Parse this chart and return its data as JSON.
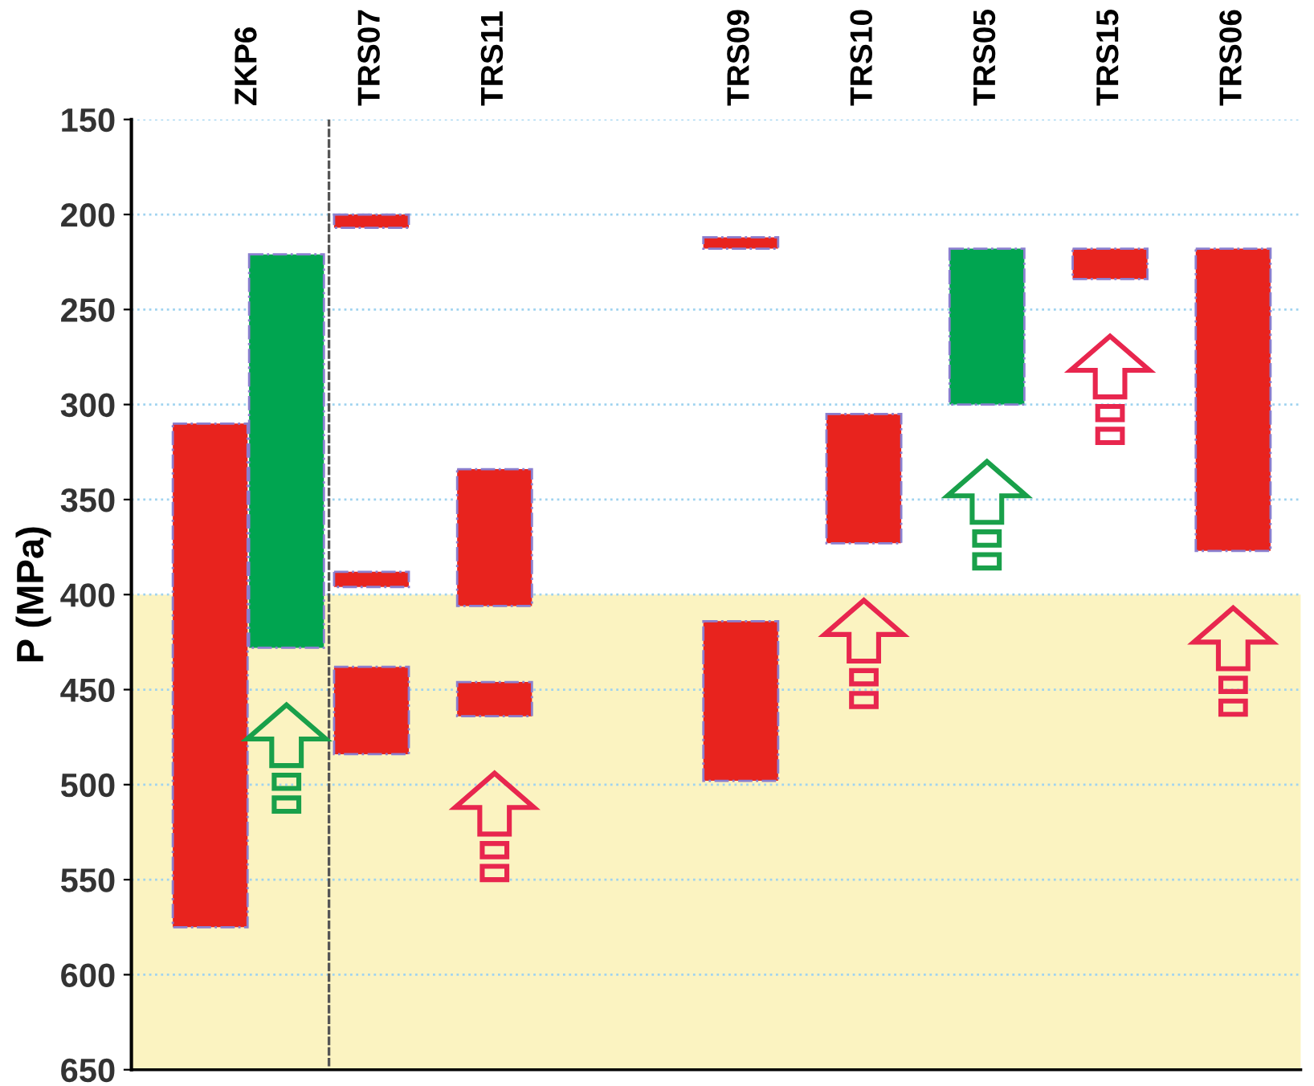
{
  "chart_data": {
    "type": "bar",
    "ylabel": "P (MPa)",
    "categories": [
      "ZKP6",
      "TRS07",
      "TRS11",
      null,
      "TRS09",
      "TRS10",
      "TRS05",
      "TRS15",
      "TRS06"
    ],
    "series": [
      {
        "color": "#e8231e",
        "base": [
          310,
          438,
          334,
          null,
          414,
          305,
          null,
          218,
          218
        ],
        "values": [
          265,
          46,
          72,
          null,
          84,
          68,
          null,
          16,
          159
        ]
      },
      {
        "color": "#e8231e",
        "base": [
          null,
          388,
          446,
          null,
          212,
          null,
          null,
          null,
          null
        ],
        "values": [
          null,
          8,
          18,
          null,
          6,
          null,
          null,
          null,
          null
        ]
      },
      {
        "color": "#e8231e",
        "base": [
          null,
          200,
          null,
          null,
          null,
          null,
          null,
          null,
          null
        ],
        "values": [
          null,
          7,
          null,
          null,
          null,
          null,
          null,
          null,
          null
        ]
      },
      {
        "color": "#00a550",
        "base": [
          221,
          null,
          null,
          null,
          null,
          null,
          218,
          null,
          null
        ],
        "values": [
          207,
          null,
          null,
          null,
          null,
          null,
          82,
          null,
          null
        ]
      }
    ],
    "ylim": [
      650,
      150
    ],
    "yticks": [
      150,
      200,
      250,
      300,
      350,
      400,
      450,
      500,
      550,
      600,
      650
    ],
    "grid": "y",
    "bands": [
      {
        "axis": "y",
        "from": 400,
        "to": 650,
        "color": "#f7e98e"
      }
    ]
  }
}
